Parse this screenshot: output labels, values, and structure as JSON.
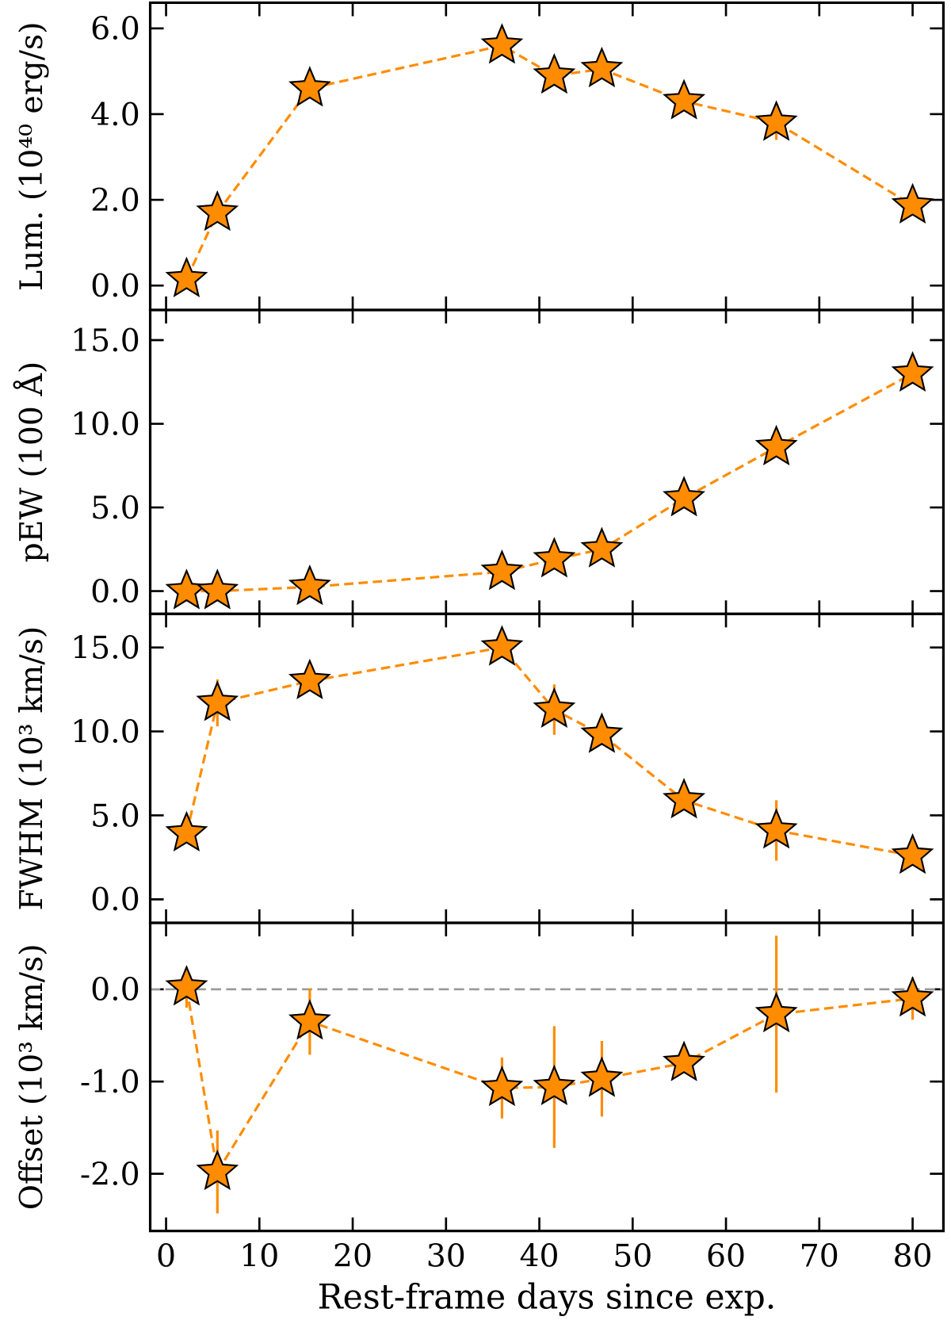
{
  "chart_data": [
    {
      "type": "line",
      "ylabel": "Lum. (10⁴⁰ erg/s)",
      "color": "#ff8c00",
      "x": [
        2.2,
        5.5,
        15.4,
        36.0,
        41.6,
        46.7,
        55.5,
        65.4,
        80.0
      ],
      "values": [
        0.15,
        1.7,
        4.6,
        5.6,
        4.9,
        5.05,
        4.3,
        3.8,
        1.87
      ],
      "errors": [
        0.1,
        0.1,
        0.15,
        0.15,
        0.15,
        0.15,
        0.15,
        0.4,
        0.15
      ],
      "ylim": [
        -0.57,
        6.6
      ],
      "yticks": [
        {
          "value": 0,
          "label": "0.0"
        },
        {
          "value": 2,
          "label": "2.0"
        },
        {
          "value": 4,
          "label": "4.0"
        },
        {
          "value": 6,
          "label": "6.0"
        }
      ]
    },
    {
      "type": "line",
      "ylabel": "pEW (100 Å)",
      "color": "#ff8c00",
      "x": [
        2.2,
        5.5,
        15.4,
        36.0,
        41.6,
        46.7,
        55.5,
        65.4,
        80.0
      ],
      "values": [
        0.0,
        0.0,
        0.25,
        1.15,
        1.9,
        2.5,
        5.55,
        8.6,
        13.0
      ],
      "errors": [
        0.1,
        0.1,
        0.1,
        0.15,
        0.15,
        0.15,
        0.2,
        0.2,
        0.2
      ],
      "ylim": [
        -1.36,
        16.8
      ],
      "yticks": [
        {
          "value": 0,
          "label": "0.0"
        },
        {
          "value": 5,
          "label": "5.0"
        },
        {
          "value": 10,
          "label": "10.0"
        },
        {
          "value": 15,
          "label": "15.0"
        }
      ]
    },
    {
      "type": "line",
      "ylabel": "FWHM (10³ km/s)",
      "color": "#ff8c00",
      "x": [
        2.2,
        5.5,
        15.4,
        36.0,
        41.6,
        46.7,
        55.5,
        65.4,
        80.0
      ],
      "values": [
        3.93,
        11.7,
        13.0,
        15.0,
        11.3,
        9.8,
        5.9,
        4.1,
        2.6
      ],
      "errors": [
        0.3,
        1.4,
        0.3,
        0.3,
        1.5,
        0.3,
        0.3,
        1.8,
        0.3
      ],
      "ylim": [
        -1.4,
        17.0
      ],
      "yticks": [
        {
          "value": 0,
          "label": "0.0"
        },
        {
          "value": 5,
          "label": "5.0"
        },
        {
          "value": 10,
          "label": "10.0"
        },
        {
          "value": 15,
          "label": "15.0"
        }
      ]
    },
    {
      "type": "line",
      "ylabel": "Offset (10³ km/s)",
      "xlabel": "Rest-frame days since exp.",
      "color": "#ff8c00",
      "x": [
        2.2,
        5.5,
        15.4,
        36.0,
        41.6,
        46.7,
        55.5,
        65.4,
        80.0
      ],
      "values": [
        0.02,
        -1.98,
        -0.35,
        -1.07,
        -1.06,
        -0.97,
        -0.8,
        -0.27,
        -0.1
      ],
      "errors": [
        0.22,
        0.45,
        0.36,
        0.33,
        0.66,
        0.41,
        0.08,
        0.85,
        0.23
      ],
      "hline": 0,
      "ylim": [
        -2.62,
        0.72
      ],
      "yticks": [
        {
          "value": -2,
          "label": "-2.0"
        },
        {
          "value": -1,
          "label": "-1.0"
        },
        {
          "value": 0,
          "label": "0.0"
        }
      ],
      "xlim": [
        -1.7,
        83.3
      ],
      "xticks": [
        0,
        10,
        20,
        30,
        40,
        50,
        60,
        70,
        80
      ]
    }
  ]
}
